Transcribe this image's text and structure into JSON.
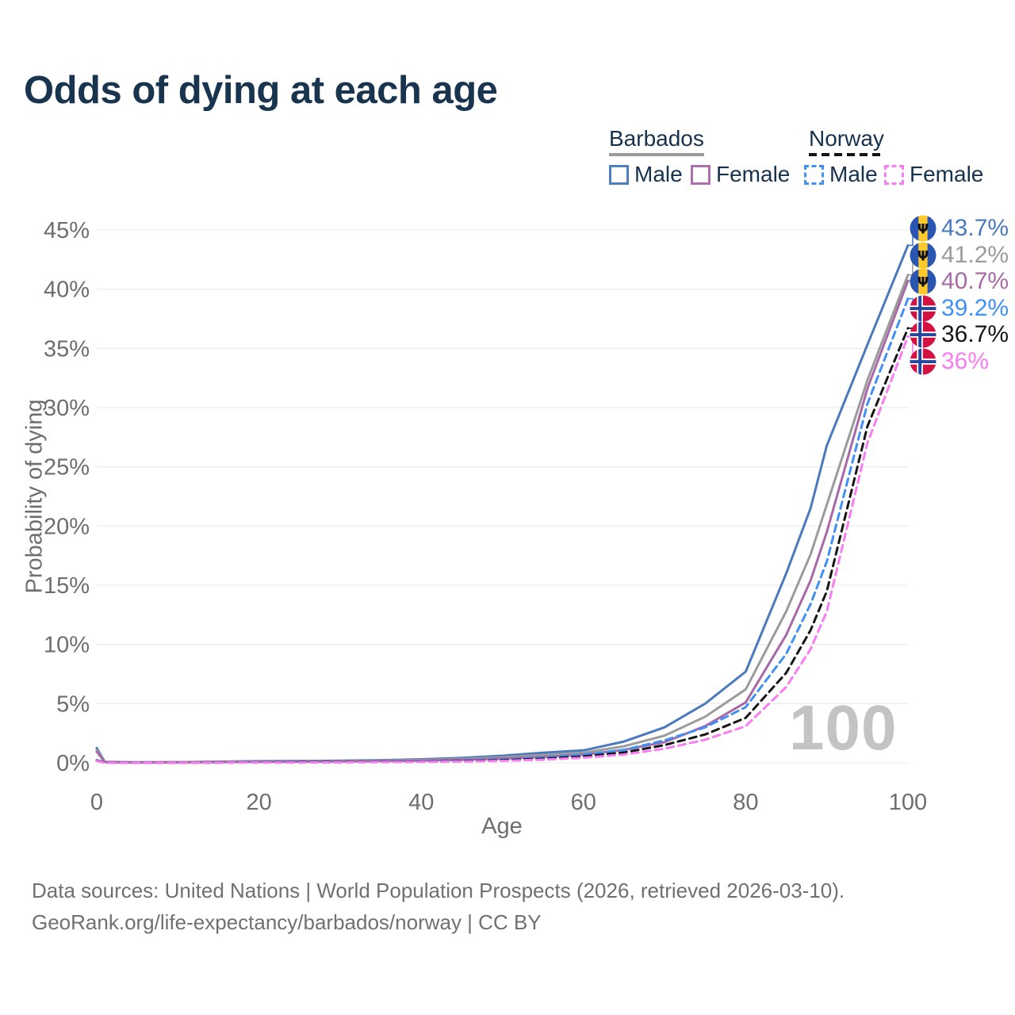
{
  "title": "Odds of dying at each age",
  "legend": {
    "groups": [
      {
        "label": "Barbados",
        "line_style": "solid",
        "underline_color": "#9b9b9b",
        "items": [
          {
            "label": "Male",
            "color": "#4e7ec0",
            "dashed": false
          },
          {
            "label": "Female",
            "color": "#ad6fae",
            "dashed": false
          }
        ]
      },
      {
        "label": "Norway",
        "line_style": "dashed",
        "underline_color": "#141414",
        "items": [
          {
            "label": "Male",
            "color": "#4090f5",
            "dashed": true
          },
          {
            "label": "Female",
            "color": "#f97cf2",
            "dashed": true
          }
        ]
      }
    ]
  },
  "watermark": "100",
  "footer": {
    "line1": "Data sources: United Nations | World Population Prospects (2026, retrieved 2026-03-10).",
    "line2": "GeoRank.org/life-expectancy/barbados/norway | CC BY"
  },
  "chart_data": {
    "type": "line",
    "title": "Odds of dying at each age",
    "xlabel": "Age",
    "ylabel": "Probability of dying",
    "xlim": [
      0,
      100
    ],
    "ylim": [
      0,
      45
    ],
    "grid": true,
    "legend_position": "top-right",
    "x_ticks": [
      {
        "v": 0,
        "label": "0"
      },
      {
        "v": 20,
        "label": "20"
      },
      {
        "v": 40,
        "label": "40"
      },
      {
        "v": 60,
        "label": "60"
      },
      {
        "v": 80,
        "label": "80"
      },
      {
        "v": 100,
        "label": "100"
      }
    ],
    "y_ticks": [
      {
        "v": 0,
        "label": "0%"
      },
      {
        "v": 5,
        "label": "5%"
      },
      {
        "v": 10,
        "label": "10%"
      },
      {
        "v": 15,
        "label": "15%"
      },
      {
        "v": 20,
        "label": "20%"
      },
      {
        "v": 25,
        "label": "25%"
      },
      {
        "v": 30,
        "label": "30%"
      },
      {
        "v": 35,
        "label": "35%"
      },
      {
        "v": 40,
        "label": "40%"
      },
      {
        "v": 45,
        "label": "45%"
      }
    ],
    "x": [
      0,
      1,
      5,
      10,
      15,
      20,
      25,
      30,
      35,
      40,
      45,
      50,
      55,
      60,
      65,
      70,
      75,
      80,
      85,
      88,
      90,
      95,
      100
    ],
    "series": [
      {
        "name": "Barbados Male",
        "country": "Barbados",
        "flag": "barbados",
        "color": "#4a7abd",
        "dashed": false,
        "end_value": 43.7,
        "end_label": "43.7%",
        "values": [
          1.25,
          0.08,
          0.05,
          0.06,
          0.1,
          0.14,
          0.16,
          0.19,
          0.23,
          0.3,
          0.42,
          0.6,
          0.85,
          1.05,
          1.8,
          3.0,
          5.0,
          7.7,
          16.0,
          21.5,
          26.8,
          35.3,
          43.7
        ]
      },
      {
        "name": "Barbados",
        "country": "Barbados",
        "flag": "barbados",
        "color": "#9b9b9b",
        "dashed": false,
        "end_value": 41.2,
        "end_label": "41.2%",
        "values": [
          1.1,
          0.07,
          0.04,
          0.05,
          0.08,
          0.11,
          0.13,
          0.15,
          0.18,
          0.24,
          0.33,
          0.47,
          0.66,
          0.85,
          1.4,
          2.3,
          3.9,
          6.2,
          12.8,
          17.6,
          21.8,
          32.3,
          41.2
        ]
      },
      {
        "name": "Barbados Female",
        "country": "Barbados",
        "flag": "barbados",
        "color": "#a76aa7",
        "dashed": false,
        "end_value": 40.7,
        "end_label": "40.7%",
        "values": [
          0.95,
          0.06,
          0.03,
          0.04,
          0.06,
          0.08,
          0.1,
          0.12,
          0.15,
          0.19,
          0.26,
          0.36,
          0.5,
          0.68,
          1.1,
          1.75,
          3.1,
          5.1,
          10.8,
          15.4,
          19.5,
          31.6,
          40.7
        ]
      },
      {
        "name": "Norway Male",
        "country": "Norway",
        "flag": "norway",
        "color": "#4090f5",
        "dashed": true,
        "end_value": 39.2,
        "end_label": "39.2%",
        "values": [
          0.22,
          0.02,
          0.01,
          0.01,
          0.03,
          0.06,
          0.07,
          0.08,
          0.1,
          0.13,
          0.18,
          0.28,
          0.44,
          0.68,
          1.1,
          1.9,
          3.0,
          4.7,
          9.2,
          13.4,
          17.0,
          30.3,
          39.2
        ]
      },
      {
        "name": "Norway",
        "country": "Norway",
        "flag": "norway",
        "color": "#161616",
        "dashed": true,
        "end_value": 36.7,
        "end_label": "36.7%",
        "values": [
          0.19,
          0.02,
          0.01,
          0.01,
          0.02,
          0.04,
          0.05,
          0.06,
          0.08,
          0.1,
          0.14,
          0.22,
          0.35,
          0.54,
          0.88,
          1.5,
          2.4,
          3.8,
          7.6,
          11.2,
          14.5,
          28.4,
          36.7
        ]
      },
      {
        "name": "Norway Female",
        "country": "Norway",
        "flag": "norway",
        "color": "#f97cf2",
        "dashed": true,
        "end_value": 36.0,
        "end_label": "36%",
        "values": [
          0.16,
          0.01,
          0.01,
          0.01,
          0.02,
          0.03,
          0.03,
          0.04,
          0.06,
          0.08,
          0.11,
          0.17,
          0.27,
          0.43,
          0.7,
          1.2,
          1.95,
          3.1,
          6.4,
          9.6,
          12.8,
          27.0,
          36.0
        ]
      }
    ]
  }
}
